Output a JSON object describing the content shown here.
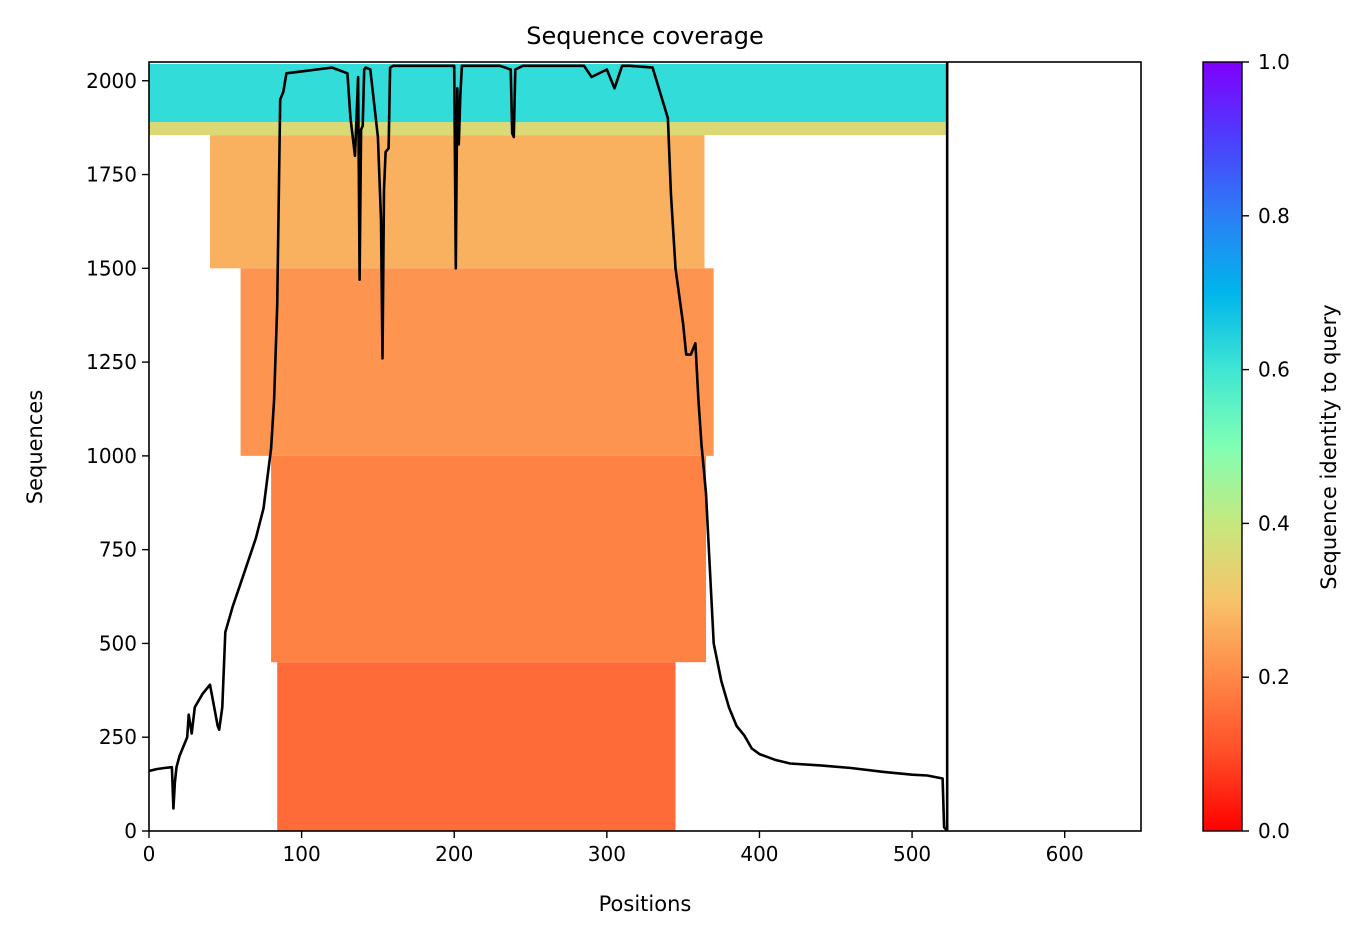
{
  "chart_data": {
    "type": "heatmap",
    "title": "Sequence coverage",
    "xlabel": "Positions",
    "ylabel": "Sequences",
    "xlim": [
      0,
      650
    ],
    "ylim": [
      0,
      2050
    ],
    "xticks": [
      "0",
      "100",
      "200",
      "300",
      "400",
      "500",
      "600"
    ],
    "yticks": [
      "0",
      "250",
      "500",
      "750",
      "1000",
      "1250",
      "1500",
      "1750",
      "2000"
    ],
    "query_length": 523,
    "colorbar": {
      "label": "Sequence identity to query",
      "range": [
        0.0,
        1.0
      ],
      "ticks": [
        "0.0",
        "0.2",
        "0.4",
        "0.6",
        "0.8",
        "1.0"
      ],
      "colormap": "rainbow_r"
    },
    "alignment_blocks": [
      {
        "y_range": [
          0,
          450
        ],
        "x_range": [
          84,
          345
        ],
        "identity": 0.15
      },
      {
        "y_range": [
          450,
          1000
        ],
        "x_range": [
          80,
          365
        ],
        "identity": 0.19
      },
      {
        "y_range": [
          1000,
          1500
        ],
        "x_range": [
          60,
          370
        ],
        "identity": 0.22
      },
      {
        "y_range": [
          1500,
          1855
        ],
        "x_range": [
          40,
          364
        ],
        "identity": 0.27
      },
      {
        "y_range": [
          1855,
          1890
        ],
        "x_range": [
          0,
          523
        ],
        "identity": 0.36
      },
      {
        "y_range": [
          1890,
          2045
        ],
        "x_range": [
          0,
          523
        ],
        "identity": 0.62
      }
    ],
    "coverage_line": {
      "name": "",
      "color": "#000000",
      "x": [
        0,
        5,
        10,
        15,
        16,
        17,
        18,
        20,
        25,
        26,
        28,
        30,
        35,
        40,
        45,
        46,
        48,
        50,
        55,
        60,
        65,
        70,
        75,
        80,
        82,
        84,
        86,
        88,
        90,
        100,
        110,
        120,
        130,
        132,
        135,
        137,
        138,
        139,
        140,
        141,
        142,
        145,
        150,
        152,
        153,
        154,
        155,
        157,
        158,
        160,
        170,
        180,
        190,
        200,
        201,
        202,
        203,
        204,
        205,
        210,
        230,
        237,
        238,
        239,
        240,
        245,
        260,
        280,
        285,
        290,
        300,
        305,
        310,
        315,
        330,
        340,
        342,
        345,
        350,
        352,
        355,
        358,
        360,
        362,
        365,
        370,
        375,
        380,
        385,
        390,
        395,
        400,
        410,
        420,
        440,
        460,
        480,
        500,
        510,
        520,
        521,
        523
      ],
      "y": [
        160,
        165,
        168,
        170,
        60,
        130,
        170,
        200,
        250,
        310,
        260,
        330,
        365,
        390,
        280,
        270,
        330,
        530,
        600,
        660,
        720,
        780,
        860,
        1020,
        1150,
        1400,
        1950,
        1970,
        2020,
        2025,
        2030,
        2035,
        2020,
        1900,
        1800,
        2010,
        1470,
        1870,
        1880,
        2030,
        2035,
        2030,
        1850,
        1630,
        1260,
        1710,
        1810,
        1820,
        2035,
        2040,
        2040,
        2040,
        2040,
        2040,
        1500,
        1980,
        1830,
        1960,
        2040,
        2040,
        2040,
        2030,
        1860,
        1850,
        2030,
        2040,
        2040,
        2040,
        2040,
        2010,
        2030,
        1980,
        2040,
        2040,
        2035,
        1900,
        1700,
        1500,
        1350,
        1270,
        1270,
        1300,
        1150,
        1030,
        900,
        500,
        400,
        330,
        280,
        255,
        220,
        205,
        190,
        180,
        175,
        168,
        158,
        150,
        148,
        140,
        10,
        0
      ]
    }
  }
}
